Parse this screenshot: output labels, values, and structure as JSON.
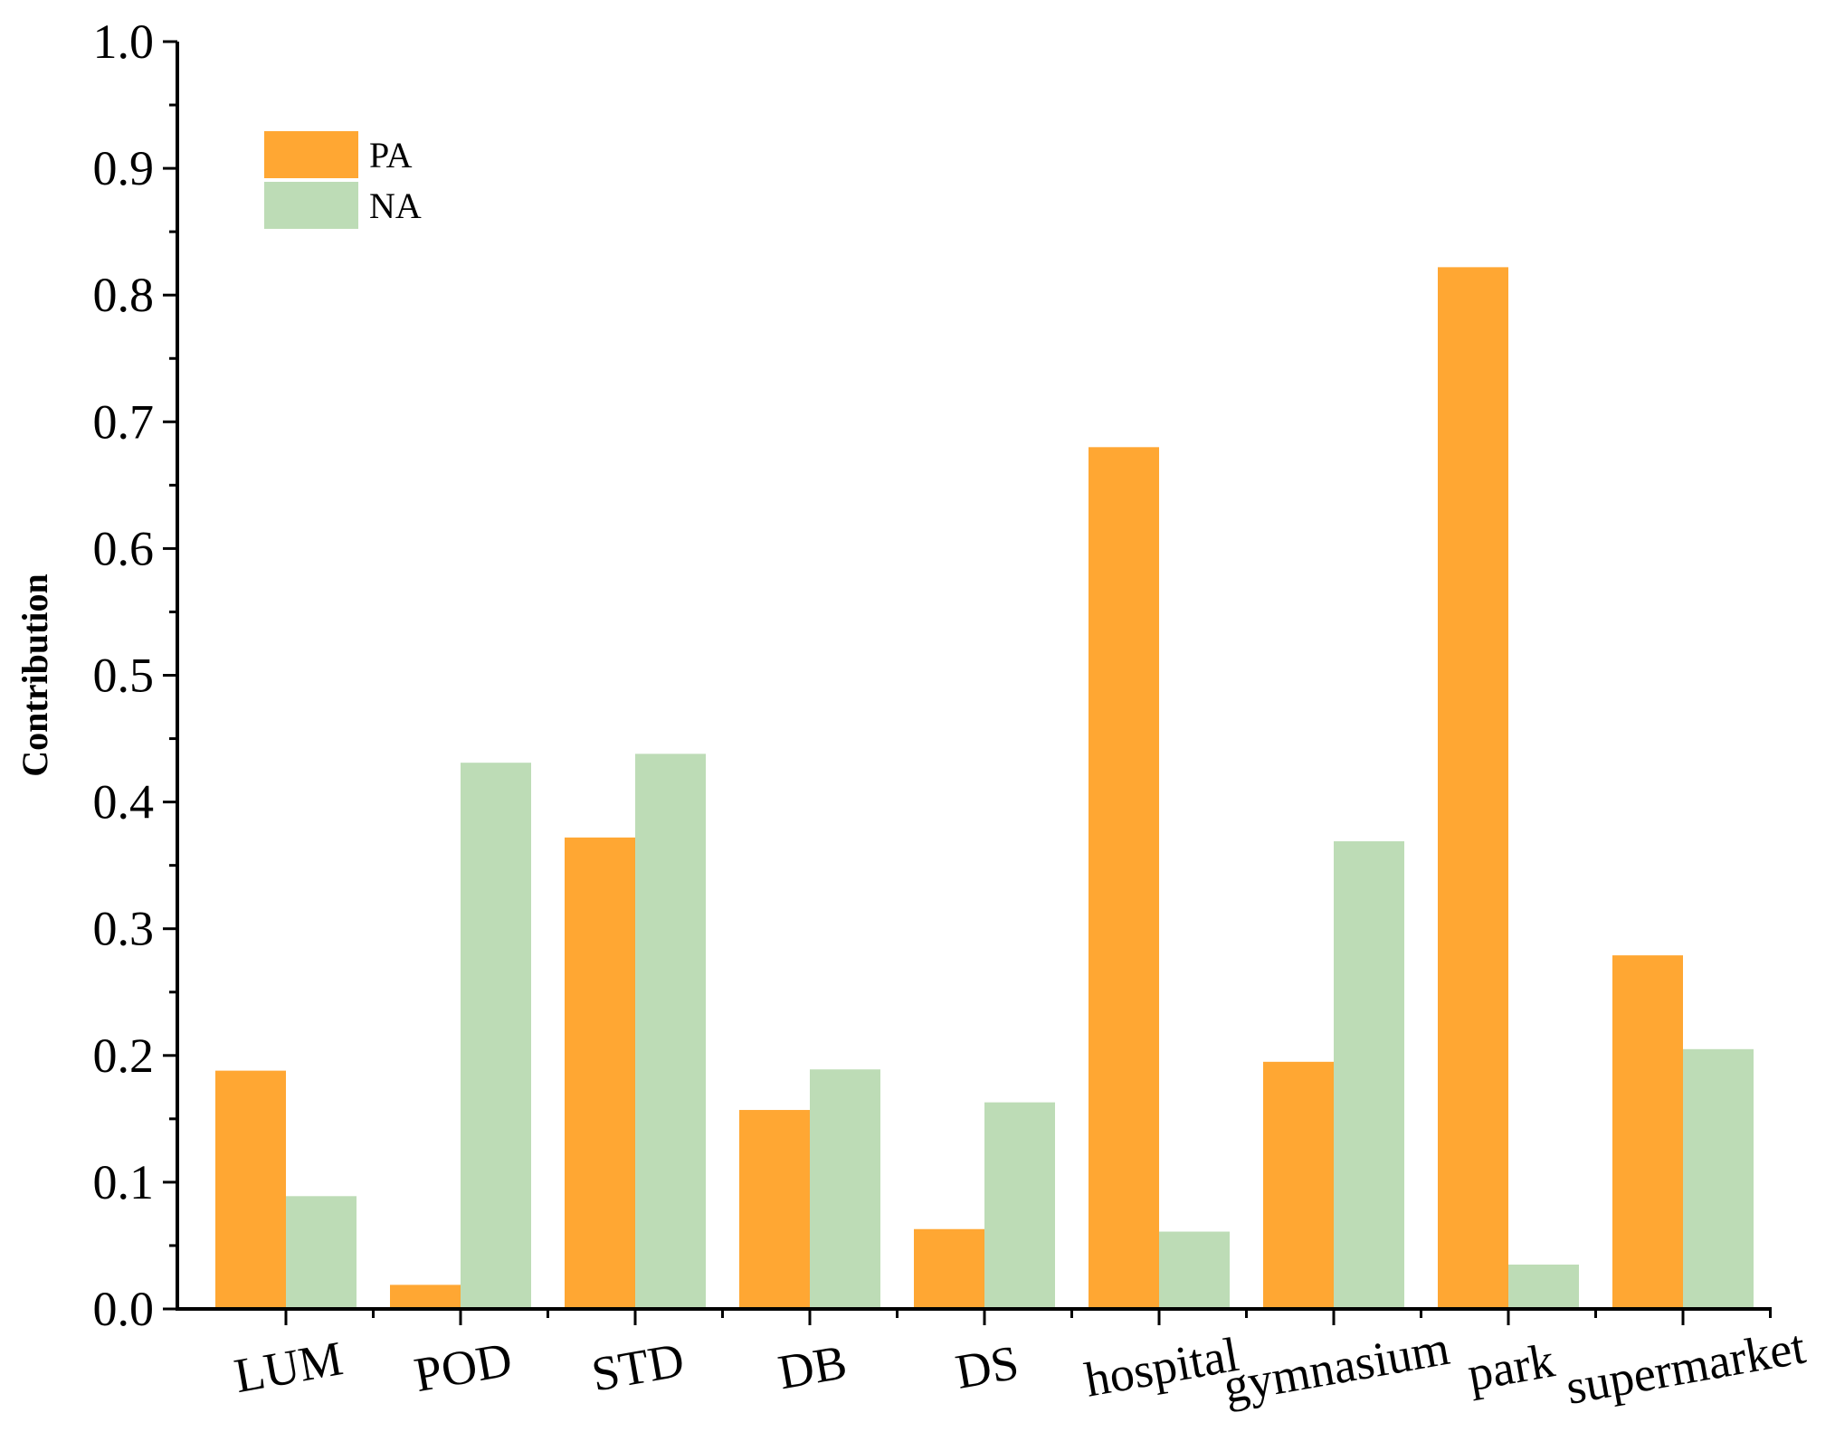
{
  "chart_data": {
    "type": "bar",
    "title": "",
    "xlabel": "",
    "ylabel": "Contribution",
    "ylim": [
      0,
      1.0
    ],
    "yticks": [
      "0.0",
      "0.1",
      "0.2",
      "0.3",
      "0.4",
      "0.5",
      "0.6",
      "0.7",
      "0.8",
      "0.9",
      "1.0"
    ],
    "categories": [
      "LUM",
      "POD",
      "STD",
      "DB",
      "DS",
      "hospital",
      "gymnasium",
      "park",
      "supermarket"
    ],
    "series": [
      {
        "name": "PA",
        "color": "#FFA733",
        "values": [
          0.188,
          0.019,
          0.372,
          0.157,
          0.063,
          0.68,
          0.195,
          0.822,
          0.279
        ]
      },
      {
        "name": "NA",
        "color": "#BDDCB6",
        "values": [
          0.089,
          0.431,
          0.438,
          0.189,
          0.163,
          0.061,
          0.369,
          0.035,
          0.205
        ]
      }
    ],
    "legend_position": "top-left",
    "grid": false
  }
}
